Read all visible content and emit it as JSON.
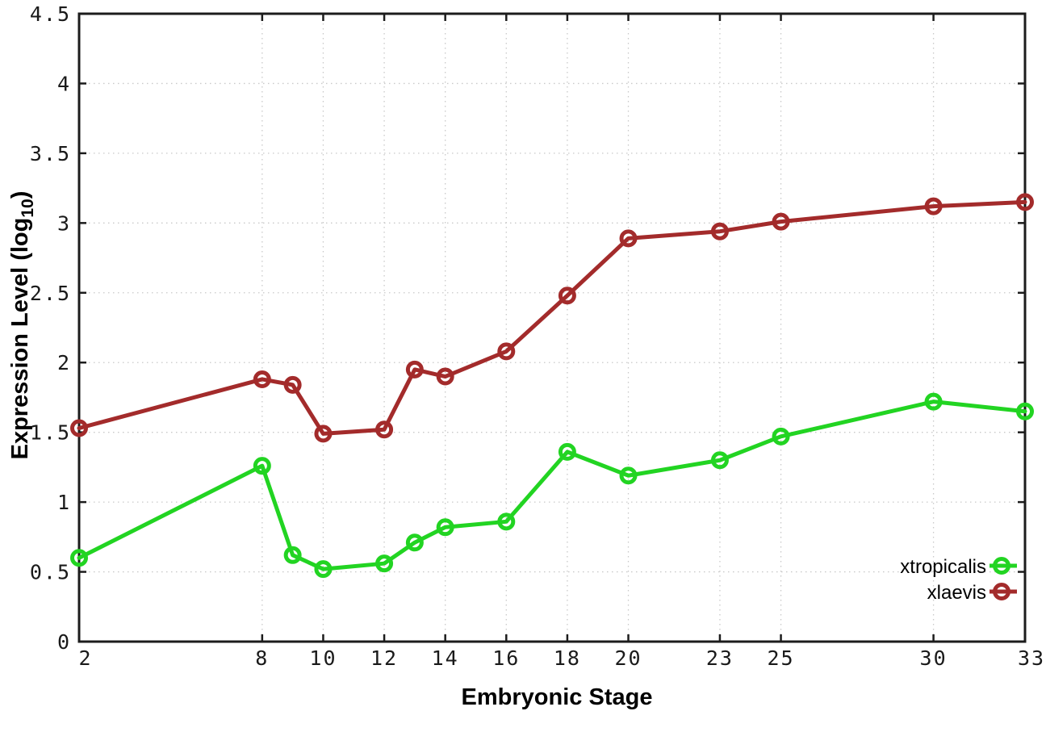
{
  "chart_data": {
    "type": "line",
    "title": "",
    "xlabel": "Embryonic Stage",
    "ylabel": "Expression Level (log10)",
    "ylabel_parts": {
      "prefix": "Expression Level (log",
      "sub": "10",
      "suffix": ")"
    },
    "xlim": [
      2,
      33
    ],
    "ylim": [
      0,
      4.5
    ],
    "grid": true,
    "legend_position": "bottom-right",
    "xticks": [
      2,
      8,
      10,
      12,
      14,
      16,
      18,
      20,
      23,
      25,
      30,
      33
    ],
    "xtick_labels": [
      "2",
      "8",
      "10",
      "12",
      "14",
      "16",
      "18",
      "20",
      "23",
      "25",
      "30",
      "33"
    ],
    "yticks": [
      0,
      0.5,
      1,
      1.5,
      2,
      2.5,
      3,
      3.5,
      4,
      4.5
    ],
    "ytick_labels": [
      "0",
      "0.5",
      "1",
      "1.5",
      "2",
      "2.5",
      "3",
      "3.5",
      "4",
      "4.5"
    ],
    "x": [
      2,
      8,
      9,
      10,
      12,
      13,
      14,
      16,
      18,
      20,
      23,
      25,
      30,
      33
    ],
    "series": [
      {
        "name": "xtropicalis",
        "color": "#22d422",
        "marker": "open-circle",
        "values": [
          0.6,
          1.26,
          0.62,
          0.52,
          0.56,
          0.71,
          0.82,
          0.86,
          1.36,
          1.19,
          1.3,
          1.47,
          1.72,
          1.65
        ]
      },
      {
        "name": "xlaevis",
        "color": "#a32b2b",
        "marker": "open-circle",
        "values": [
          1.53,
          1.88,
          1.84,
          1.49,
          1.52,
          1.95,
          1.9,
          2.08,
          2.48,
          2.89,
          2.94,
          3.01,
          3.12,
          3.15
        ]
      }
    ]
  },
  "colors": {
    "background": "#ffffff",
    "axis": "#1c1c1c",
    "grid": "#c9c9c9",
    "tick_text": "#1a1a1a",
    "series_green": "#22d422",
    "series_red": "#a32b2b"
  }
}
